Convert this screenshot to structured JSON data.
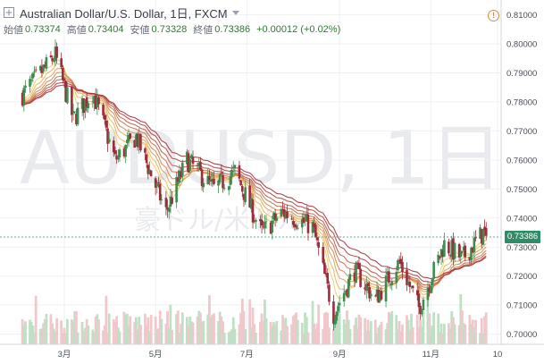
{
  "header": {
    "title": "Australian Dollar/U.S. Dollar, 1日, FXCM",
    "ohlc": [
      {
        "label": "始値",
        "value": "0.73374"
      },
      {
        "label": "高値",
        "value": "0.73404"
      },
      {
        "label": "安値",
        "value": "0.73328"
      },
      {
        "label": "終値",
        "value": "0.73386"
      }
    ],
    "change": "+0.00012 (+0.02%)"
  },
  "watermark": {
    "symbol": "AUDUSD, 1日",
    "name": "豪ドル/米ドル"
  },
  "last_price_label": "0.73386",
  "colors": {
    "up": "#3d8c4e",
    "down": "#9b2d3a",
    "vol_up": "#bfe0c4",
    "vol_down": "#f0c8cc",
    "ribbon_fast": "#f3d068",
    "ribbon_slow": "#a8323e",
    "price_tag": "#2f8c67",
    "watermark": "#e9eaed"
  },
  "icons": {
    "symbol_menu": "expand-icon",
    "alert": "exclamation-icon",
    "title_menu": "chevron-down-icon"
  },
  "chart_data": {
    "type": "candlestick",
    "y_axis_ticks": [
      "0.81000",
      "0.80000",
      "0.79000",
      "0.78000",
      "0.77000",
      "0.76000",
      "0.75000",
      "0.74000",
      "0.73000",
      "0.72000",
      "0.71000",
      "0.70000"
    ],
    "ylim": [
      0.6965,
      0.8145
    ],
    "x_axis_ticks": [
      "3月",
      "5月",
      "7月",
      "9月",
      "11月",
      "10"
    ],
    "last_close": 0.73386,
    "indicator": "moving-average ribbon (8 lines)",
    "price_path": [
      [
        "2017-02-01",
        0.7825
      ],
      [
        "2017-02-23",
        0.796
      ],
      [
        "2017-03-07",
        0.774
      ],
      [
        "2017-03-20",
        0.7835
      ],
      [
        "2017-04-04",
        0.76
      ],
      [
        "2017-04-18",
        0.768
      ],
      [
        "2017-05-08",
        0.742
      ],
      [
        "2017-05-22",
        0.76
      ],
      [
        "2017-06-09",
        0.75
      ],
      [
        "2017-06-23",
        0.756
      ],
      [
        "2017-07-11",
        0.735
      ],
      [
        "2017-07-25",
        0.742
      ],
      [
        "2017-08-14",
        0.737
      ],
      [
        "2017-08-28",
        0.707
      ],
      [
        "2017-09-11",
        0.722
      ],
      [
        "2017-09-25",
        0.712
      ],
      [
        "2017-10-11",
        0.725
      ],
      [
        "2017-10-24",
        0.709
      ],
      [
        "2017-11-10",
        0.731
      ],
      [
        "2017-11-22",
        0.726
      ],
      [
        "2017-12-06",
        0.735
      ],
      [
        "2017-12-08",
        0.7339
      ]
    ]
  }
}
